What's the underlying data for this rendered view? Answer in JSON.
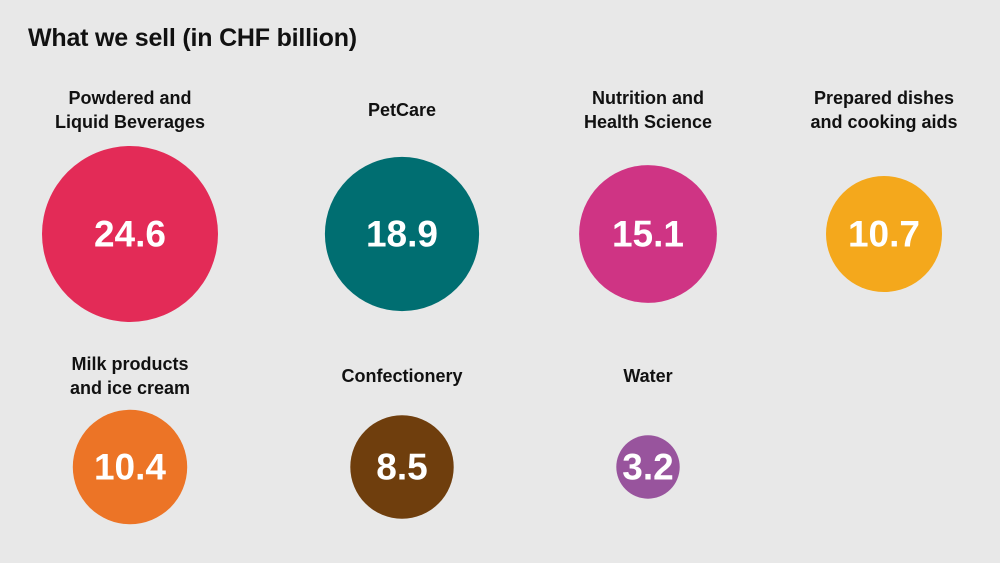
{
  "page": {
    "title": "What we sell (in CHF billion)"
  },
  "chart_data": {
    "type": "bubble",
    "title": "What we sell (in CHF billion)",
    "unit": "CHF billion",
    "categories": [
      [
        "Powdered and",
        "Liquid Beverages"
      ],
      [
        "PetCare"
      ],
      [
        "Nutrition and",
        "Health Science"
      ],
      [
        "Prepared dishes",
        "and cooking aids"
      ],
      [
        "Milk products",
        "and ice cream"
      ],
      [
        "Confectionery"
      ],
      [
        "Water"
      ]
    ],
    "values": [
      24.6,
      18.9,
      15.1,
      10.7,
      10.4,
      8.5,
      3.2
    ],
    "value_labels": [
      "24.6",
      "18.9",
      "15.1",
      "10.7",
      "10.4",
      "8.5",
      "3.2"
    ],
    "colors": [
      "#e32b57",
      "#006e71",
      "#cf3484",
      "#f4a81c",
      "#ec7426",
      "#6f3e0d",
      "#98549d"
    ],
    "size_encoding": "area"
  }
}
